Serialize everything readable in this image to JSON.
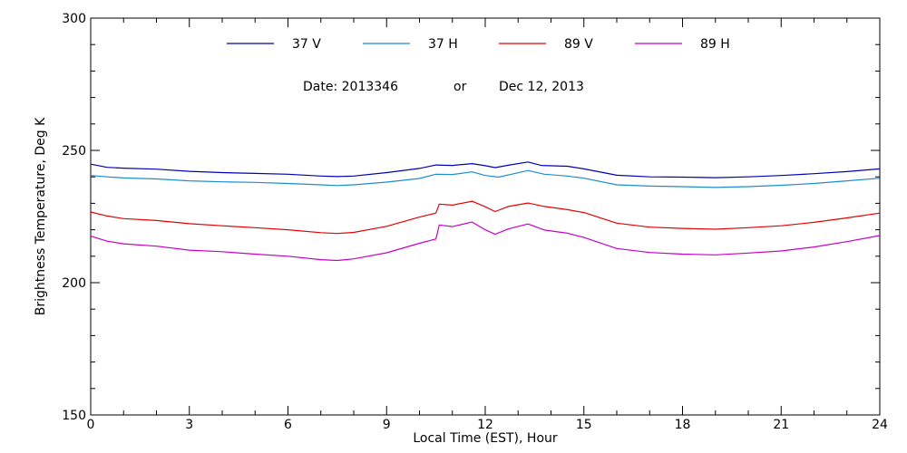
{
  "chart_data": {
    "type": "line",
    "title": "",
    "xlabel": "Local Time (EST), Hour",
    "ylabel": "Brightness Temperature, Deg K",
    "xlim": [
      0,
      24
    ],
    "ylim": [
      150,
      300
    ],
    "x_ticks": [
      "0",
      "3",
      "6",
      "9",
      "12",
      "15",
      "18",
      "21",
      "24"
    ],
    "y_ticks": [
      "150",
      "200",
      "250",
      "300"
    ],
    "grid": false,
    "legend_position": "top",
    "annotation": {
      "date_text": "Date: 2013346",
      "or_text": "or",
      "day_text": "Dec 12, 2013"
    },
    "series": [
      {
        "name": "37 V",
        "color": "#0000b4",
        "points": [
          [
            0,
            244.8
          ],
          [
            0.5,
            243.6
          ],
          [
            1,
            243.3
          ],
          [
            2,
            242.9
          ],
          [
            3,
            242.1
          ],
          [
            4,
            241.6
          ],
          [
            5,
            241.3
          ],
          [
            6,
            241.0
          ],
          [
            7,
            240.3
          ],
          [
            7.5,
            240.1
          ],
          [
            8,
            240.3
          ],
          [
            9,
            241.6
          ],
          [
            10,
            243.2
          ],
          [
            10.5,
            244.5
          ],
          [
            11,
            244.3
          ],
          [
            11.6,
            245.0
          ],
          [
            12,
            244.2
          ],
          [
            12.3,
            243.5
          ],
          [
            12.7,
            244.4
          ],
          [
            13.3,
            245.6
          ],
          [
            13.7,
            244.3
          ],
          [
            14.5,
            244.0
          ],
          [
            15,
            243.0
          ],
          [
            16,
            240.6
          ],
          [
            17,
            240.0
          ],
          [
            18,
            239.9
          ],
          [
            19,
            239.7
          ],
          [
            20,
            240.0
          ],
          [
            21,
            240.5
          ],
          [
            22,
            241.2
          ],
          [
            23,
            242.0
          ],
          [
            24,
            243.0
          ]
        ]
      },
      {
        "name": "37 H",
        "color": "#1e8cd2",
        "points": [
          [
            0,
            240.5
          ],
          [
            0.5,
            240.0
          ],
          [
            1,
            239.6
          ],
          [
            2,
            239.2
          ],
          [
            3,
            238.5
          ],
          [
            4,
            238.1
          ],
          [
            5,
            237.9
          ],
          [
            6,
            237.5
          ],
          [
            7,
            237.0
          ],
          [
            7.5,
            236.7
          ],
          [
            8,
            237.0
          ],
          [
            9,
            238.0
          ],
          [
            10,
            239.4
          ],
          [
            10.5,
            241.0
          ],
          [
            11,
            240.9
          ],
          [
            11.6,
            241.9
          ],
          [
            12,
            240.5
          ],
          [
            12.4,
            239.9
          ],
          [
            12.8,
            241.0
          ],
          [
            13.3,
            242.4
          ],
          [
            13.8,
            241.0
          ],
          [
            14.5,
            240.3
          ],
          [
            15,
            239.5
          ],
          [
            16,
            237.0
          ],
          [
            17,
            236.5
          ],
          [
            18,
            236.3
          ],
          [
            19,
            236.0
          ],
          [
            20,
            236.3
          ],
          [
            21,
            236.8
          ],
          [
            22,
            237.5
          ],
          [
            23,
            238.5
          ],
          [
            24,
            239.5
          ]
        ]
      },
      {
        "name": "89 V",
        "color": "#e60000",
        "points": [
          [
            0,
            226.7
          ],
          [
            0.5,
            225.2
          ],
          [
            1,
            224.2
          ],
          [
            2,
            223.5
          ],
          [
            3,
            222.3
          ],
          [
            4,
            221.5
          ],
          [
            5,
            220.8
          ],
          [
            6,
            220.0
          ],
          [
            7,
            218.9
          ],
          [
            7.5,
            218.6
          ],
          [
            8,
            219.0
          ],
          [
            9,
            221.3
          ],
          [
            10,
            224.8
          ],
          [
            10.5,
            226.3
          ],
          [
            10.6,
            229.7
          ],
          [
            11,
            229.3
          ],
          [
            11.6,
            230.8
          ],
          [
            12,
            228.7
          ],
          [
            12.3,
            226.9
          ],
          [
            12.7,
            228.8
          ],
          [
            13.3,
            230.1
          ],
          [
            13.8,
            228.8
          ],
          [
            14.5,
            227.6
          ],
          [
            15,
            226.5
          ],
          [
            16,
            222.5
          ],
          [
            17,
            221.0
          ],
          [
            18,
            220.5
          ],
          [
            19,
            220.2
          ],
          [
            20,
            220.8
          ],
          [
            21,
            221.5
          ],
          [
            22,
            222.8
          ],
          [
            23,
            224.5
          ],
          [
            24,
            226.3
          ]
        ]
      },
      {
        "name": "89 H",
        "color": "#c800c8",
        "points": [
          [
            0,
            217.6
          ],
          [
            0.5,
            215.7
          ],
          [
            1,
            214.7
          ],
          [
            2,
            213.8
          ],
          [
            3,
            212.3
          ],
          [
            4,
            211.7
          ],
          [
            5,
            210.8
          ],
          [
            6,
            210.0
          ],
          [
            7,
            208.7
          ],
          [
            7.5,
            208.4
          ],
          [
            8,
            209.0
          ],
          [
            9,
            211.3
          ],
          [
            10,
            214.9
          ],
          [
            10.5,
            216.5
          ],
          [
            10.6,
            221.8
          ],
          [
            11,
            221.2
          ],
          [
            11.6,
            222.9
          ],
          [
            12,
            220.0
          ],
          [
            12.3,
            218.3
          ],
          [
            12.7,
            220.3
          ],
          [
            13.3,
            222.2
          ],
          [
            13.8,
            219.9
          ],
          [
            14.5,
            218.7
          ],
          [
            15,
            217.1
          ],
          [
            16,
            212.9
          ],
          [
            17,
            211.4
          ],
          [
            18,
            210.8
          ],
          [
            19,
            210.5
          ],
          [
            20,
            211.2
          ],
          [
            21,
            212.0
          ],
          [
            22,
            213.5
          ],
          [
            23,
            215.5
          ],
          [
            24,
            217.8
          ]
        ]
      }
    ]
  }
}
